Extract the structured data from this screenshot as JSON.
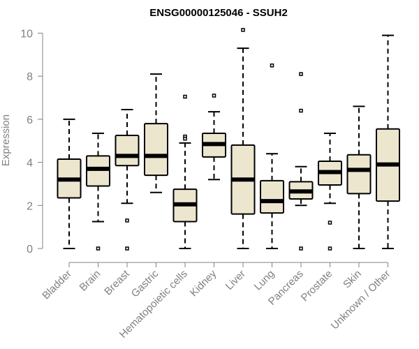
{
  "chart_data": {
    "type": "box",
    "title": "ENSG00000125046 - SSUH2",
    "ylabel": "Expression",
    "xlabel": "",
    "ylim": [
      0,
      10
    ],
    "yticks": [
      0,
      2,
      4,
      6,
      8,
      10
    ],
    "box_fill": "#ede6cf",
    "grid": false,
    "legend": "none",
    "categories": [
      "Bladder",
      "Brain",
      "Breast",
      "Gastric",
      "Hematopoietic cells",
      "Kidney",
      "Liver",
      "Lung",
      "Pancreas",
      "Prostate",
      "Skin",
      "Unknown / Other"
    ],
    "boxes": [
      {
        "category": "Bladder",
        "whisker_low": 0,
        "q1": 2.35,
        "median": 3.2,
        "q3": 4.15,
        "whisker_high": 6.0,
        "outliers": []
      },
      {
        "category": "Brain",
        "whisker_low": 1.25,
        "q1": 2.9,
        "median": 3.7,
        "q3": 4.3,
        "whisker_high": 5.35,
        "outliers": [
          0
        ]
      },
      {
        "category": "Breast",
        "whisker_low": 2.1,
        "q1": 3.85,
        "median": 4.3,
        "q3": 5.25,
        "whisker_high": 6.45,
        "outliers": [
          1.3,
          0
        ]
      },
      {
        "category": "Gastric",
        "whisker_low": 2.6,
        "q1": 3.4,
        "median": 4.3,
        "q3": 5.8,
        "whisker_high": 8.1,
        "outliers": []
      },
      {
        "category": "Hematopoietic cells",
        "whisker_low": 0,
        "q1": 1.25,
        "median": 2.05,
        "q3": 2.75,
        "whisker_high": 4.9,
        "outliers": [
          7.05,
          5.2,
          5.1
        ]
      },
      {
        "category": "Kidney",
        "whisker_low": 3.2,
        "q1": 4.25,
        "median": 4.85,
        "q3": 5.35,
        "whisker_high": 6.35,
        "outliers": [
          7.1
        ]
      },
      {
        "category": "Liver",
        "whisker_low": 0,
        "q1": 1.6,
        "median": 3.2,
        "q3": 4.8,
        "whisker_high": 9.3,
        "outliers": [
          10.15
        ]
      },
      {
        "category": "Lung",
        "whisker_low": 0,
        "q1": 1.65,
        "median": 2.2,
        "q3": 3.15,
        "whisker_high": 4.4,
        "outliers": [
          8.5
        ]
      },
      {
        "category": "Pancreas",
        "whisker_low": 2.0,
        "q1": 2.3,
        "median": 2.65,
        "q3": 3.1,
        "whisker_high": 3.8,
        "outliers": [
          8.1,
          6.4,
          0
        ]
      },
      {
        "category": "Prostate",
        "whisker_low": 2.1,
        "q1": 2.95,
        "median": 3.55,
        "q3": 4.05,
        "whisker_high": 5.35,
        "outliers": [
          1.2,
          0
        ]
      },
      {
        "category": "Skin",
        "whisker_low": 0,
        "q1": 2.55,
        "median": 3.65,
        "q3": 4.35,
        "whisker_high": 6.6,
        "outliers": []
      },
      {
        "category": "Unknown / Other",
        "whisker_low": 0,
        "q1": 2.2,
        "median": 3.9,
        "q3": 5.55,
        "whisker_high": 9.9,
        "outliers": []
      }
    ]
  }
}
